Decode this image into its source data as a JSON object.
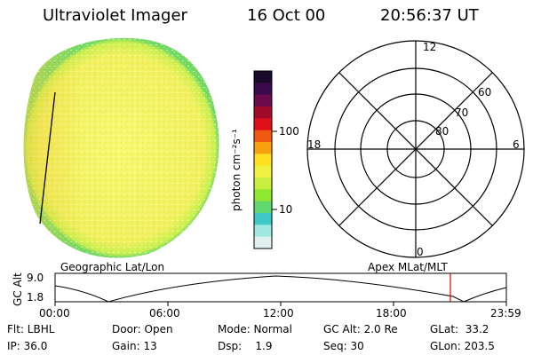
{
  "header": {
    "instrument": "Ultraviolet Imager",
    "date": "16 Oct 00",
    "time": "20:56:37 UT"
  },
  "colorbar": {
    "unit_label": "photon cm⁻²s⁻¹",
    "ticks": [
      "100",
      "10"
    ],
    "colors_top_to_bottom": [
      "#1a0a2a",
      "#3a0a4a",
      "#6a0a4a",
      "#a00a2a",
      "#e0101a",
      "#f05a10",
      "#f8a010",
      "#ffe020",
      "#f0f040",
      "#c8f040",
      "#90e830",
      "#60d870",
      "#40c8c8",
      "#a0e8e0",
      "#e0f0ee"
    ]
  },
  "polar_grid": {
    "mlt_labels": {
      "top": "12",
      "left": "18",
      "right": "6",
      "bottom": "0"
    },
    "lat_labels": [
      "60",
      "70",
      "80"
    ]
  },
  "track": {
    "label_left": "Geographic Lat/Lon",
    "label_right": "Apex MLat/MLT",
    "axis_label": "GC Alt",
    "y_ticks": [
      "9.0",
      "1.8"
    ],
    "x_ticks": [
      "00:00",
      "06:00",
      "12:00",
      "18:00",
      "23:59"
    ],
    "marker_color": "#e00000"
  },
  "status": {
    "flt": "Flt: LBHL",
    "ip": "IP: 36.0",
    "door": "Door: Open",
    "gain": "Gain: 13",
    "mode": "Mode: Normal",
    "dsp": "Dsp:    1.9",
    "gcalt": "GC Alt: 2.0 Re",
    "seq": "Seq: 30",
    "glat": "GLat:  33.2",
    "glon": "GLon: 203.5"
  },
  "colors": {
    "disk_base": "#f2f25a",
    "disk_rim": "#80e060"
  }
}
